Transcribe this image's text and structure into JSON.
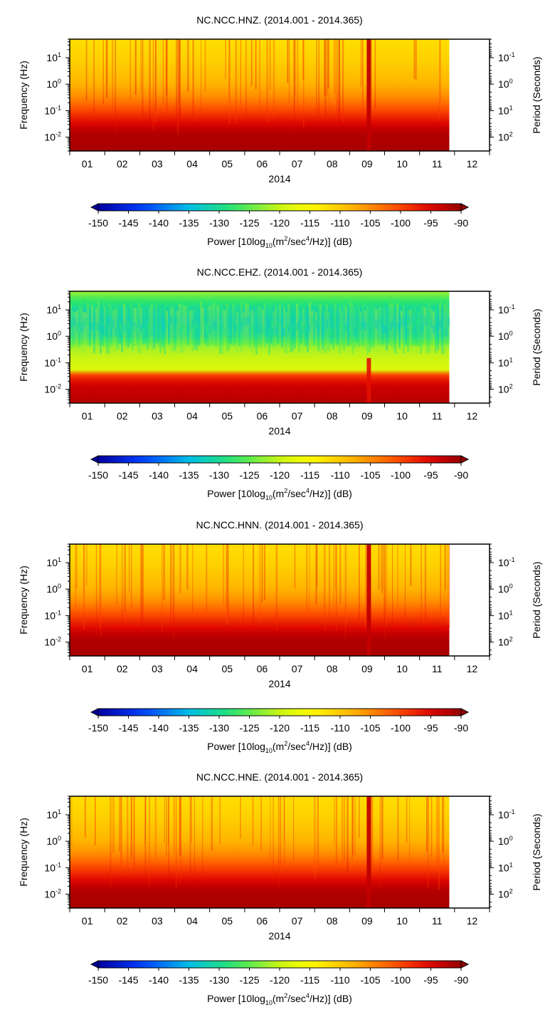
{
  "chart_data": [
    {
      "type": "heatmap",
      "title": "NC.NCC.HNZ. (2014.001 - 2014.365)",
      "profile": "hn",
      "xlabel": "2014",
      "ylabel_left": "Frequency (Hz)",
      "ylabel_right": "Period (Seconds)",
      "x_ticks": [
        "01",
        "02",
        "03",
        "04",
        "05",
        "06",
        "07",
        "08",
        "09",
        "10",
        "11",
        "12"
      ],
      "x_range_months": [
        0,
        12
      ],
      "data_end_month": 10.85,
      "freq_range_hz": [
        0.003,
        50
      ],
      "freq_ticks": [
        {
          "v": 10,
          "base": "10",
          "exp": "1"
        },
        {
          "v": 1,
          "base": "10",
          "exp": "0"
        },
        {
          "v": 0.1,
          "base": "10",
          "exp": "-1"
        },
        {
          "v": 0.01,
          "base": "10",
          "exp": "-2"
        }
      ],
      "period_ticks": [
        {
          "v": 0.1,
          "base": "10",
          "exp": "-1"
        },
        {
          "v": 1,
          "base": "10",
          "exp": "0"
        },
        {
          "v": 10,
          "base": "10",
          "exp": "1"
        },
        {
          "v": 100,
          "base": "10",
          "exp": "2"
        }
      ],
      "colorbar": {
        "range_db": [
          -150,
          -90
        ],
        "ticks": [
          "-150",
          "-145",
          "-140",
          "-135",
          "-130",
          "-125",
          "-120",
          "-115",
          "-110",
          "-105",
          "-100",
          "-95",
          "-90"
        ],
        "label_parts": [
          "Power [10log",
          "10",
          "(m",
          "2",
          "/sec",
          "4",
          "/Hz)] (dB)"
        ]
      }
    },
    {
      "type": "heatmap",
      "title": "NC.NCC.EHZ. (2014.001 - 2014.365)",
      "profile": "eh",
      "xlabel": "2014",
      "ylabel_left": "Frequency (Hz)",
      "ylabel_right": "Period (Seconds)",
      "x_ticks": [
        "01",
        "02",
        "03",
        "04",
        "05",
        "06",
        "07",
        "08",
        "09",
        "10",
        "11",
        "12"
      ],
      "x_range_months": [
        0,
        12
      ],
      "data_end_month": 10.85,
      "freq_range_hz": [
        0.003,
        50
      ],
      "freq_ticks": [
        {
          "v": 10,
          "base": "10",
          "exp": "1"
        },
        {
          "v": 1,
          "base": "10",
          "exp": "0"
        },
        {
          "v": 0.1,
          "base": "10",
          "exp": "-1"
        },
        {
          "v": 0.01,
          "base": "10",
          "exp": "-2"
        }
      ],
      "period_ticks": [
        {
          "v": 0.1,
          "base": "10",
          "exp": "-1"
        },
        {
          "v": 1,
          "base": "10",
          "exp": "0"
        },
        {
          "v": 10,
          "base": "10",
          "exp": "1"
        },
        {
          "v": 100,
          "base": "10",
          "exp": "2"
        }
      ],
      "colorbar": {
        "range_db": [
          -150,
          -90
        ],
        "ticks": [
          "-150",
          "-145",
          "-140",
          "-135",
          "-130",
          "-125",
          "-120",
          "-115",
          "-110",
          "-105",
          "-100",
          "-95",
          "-90"
        ],
        "label_parts": [
          "Power [10log",
          "10",
          "(m",
          "2",
          "/sec",
          "4",
          "/Hz)] (dB)"
        ]
      }
    },
    {
      "type": "heatmap",
      "title": "NC.NCC.HNN. (2014.001 - 2014.365)",
      "profile": "hn",
      "xlabel": "2014",
      "ylabel_left": "Frequency (Hz)",
      "ylabel_right": "Period (Seconds)",
      "x_ticks": [
        "01",
        "02",
        "03",
        "04",
        "05",
        "06",
        "07",
        "08",
        "09",
        "10",
        "11",
        "12"
      ],
      "x_range_months": [
        0,
        12
      ],
      "data_end_month": 10.85,
      "freq_range_hz": [
        0.003,
        50
      ],
      "freq_ticks": [
        {
          "v": 10,
          "base": "10",
          "exp": "1"
        },
        {
          "v": 1,
          "base": "10",
          "exp": "0"
        },
        {
          "v": 0.1,
          "base": "10",
          "exp": "-1"
        },
        {
          "v": 0.01,
          "base": "10",
          "exp": "-2"
        }
      ],
      "period_ticks": [
        {
          "v": 0.1,
          "base": "10",
          "exp": "-1"
        },
        {
          "v": 1,
          "base": "10",
          "exp": "0"
        },
        {
          "v": 10,
          "base": "10",
          "exp": "1"
        },
        {
          "v": 100,
          "base": "10",
          "exp": "2"
        }
      ],
      "colorbar": {
        "range_db": [
          -150,
          -90
        ],
        "ticks": [
          "-150",
          "-145",
          "-140",
          "-135",
          "-130",
          "-125",
          "-120",
          "-115",
          "-110",
          "-105",
          "-100",
          "-95",
          "-90"
        ],
        "label_parts": [
          "Power [10log",
          "10",
          "(m",
          "2",
          "/sec",
          "4",
          "/Hz)] (dB)"
        ]
      }
    },
    {
      "type": "heatmap",
      "title": "NC.NCC.HNE. (2014.001 - 2014.365)",
      "profile": "hn",
      "xlabel": "2014",
      "ylabel_left": "Frequency (Hz)",
      "ylabel_right": "Period (Seconds)",
      "x_ticks": [
        "01",
        "02",
        "03",
        "04",
        "05",
        "06",
        "07",
        "08",
        "09",
        "10",
        "11",
        "12"
      ],
      "x_range_months": [
        0,
        12
      ],
      "data_end_month": 10.85,
      "freq_range_hz": [
        0.003,
        50
      ],
      "freq_ticks": [
        {
          "v": 10,
          "base": "10",
          "exp": "1"
        },
        {
          "v": 1,
          "base": "10",
          "exp": "0"
        },
        {
          "v": 0.1,
          "base": "10",
          "exp": "-1"
        },
        {
          "v": 0.01,
          "base": "10",
          "exp": "-2"
        }
      ],
      "period_ticks": [
        {
          "v": 0.1,
          "base": "10",
          "exp": "-1"
        },
        {
          "v": 1,
          "base": "10",
          "exp": "0"
        },
        {
          "v": 10,
          "base": "10",
          "exp": "1"
        },
        {
          "v": 100,
          "base": "10",
          "exp": "2"
        }
      ],
      "colorbar": {
        "range_db": [
          -150,
          -90
        ],
        "ticks": [
          "-150",
          "-145",
          "-140",
          "-135",
          "-130",
          "-125",
          "-120",
          "-115",
          "-110",
          "-105",
          "-100",
          "-95",
          "-90"
        ],
        "label_parts": [
          "Power [10log",
          "10",
          "(m",
          "2",
          "/sec",
          "4",
          "/Hz)] (dB)"
        ]
      }
    }
  ]
}
